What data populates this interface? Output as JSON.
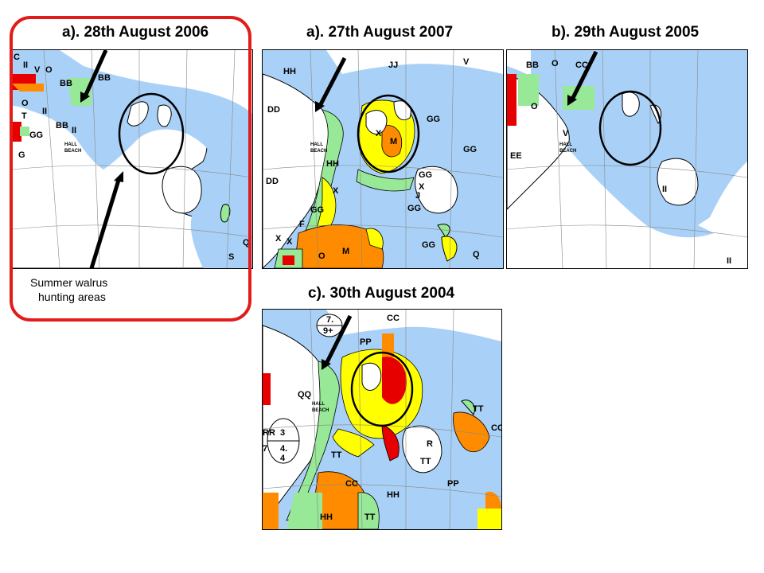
{
  "panels": [
    {
      "id": "2006",
      "title": "a). 28th August 2006",
      "codes": [
        "C",
        "II",
        "V",
        "O",
        "BB",
        "O",
        "T",
        "II",
        "GG",
        "BB",
        "G",
        "II",
        "BB",
        "Q",
        "S"
      ],
      "place": [
        "HALL",
        "BEACH"
      ]
    },
    {
      "id": "2007",
      "title": "a). 27th August 2007",
      "codes": [
        "HH",
        "JJ",
        "V",
        "DD",
        "GG",
        "X",
        "M",
        "GG",
        "HH",
        "GG",
        "X",
        "J",
        "X",
        "GG",
        "DD",
        "GG",
        "F",
        "X",
        "X",
        "O",
        "M",
        "GG",
        "Q"
      ],
      "place": [
        "HALL",
        "BEACH"
      ]
    },
    {
      "id": "2005",
      "title": "b). 29th August 2005",
      "codes": [
        "BB",
        "O",
        "CC",
        "O",
        "V",
        "EE",
        "II",
        "II"
      ],
      "place": [
        "HALL",
        "BEACH"
      ]
    },
    {
      "id": "2004",
      "title": "c). 30th August 2004",
      "codes": [
        "CC",
        "PP",
        "QQ",
        "TT",
        "CC",
        "R",
        "TT",
        "TT",
        "PP",
        "HH",
        "CC",
        "TT",
        "HH"
      ],
      "place": [
        "HALL",
        "BEACH"
      ],
      "legend": {
        "top": [
          "7.",
          "9+"
        ],
        "bottom": [
          "3",
          "4.",
          "4"
        ],
        "side": [
          "RR",
          "7"
        ]
      }
    }
  ],
  "caption": {
    "line1": "Summer walrus",
    "line2": "hunting areas"
  },
  "colors": {
    "water": "#a9d1f7",
    "fastice": "#ffffff",
    "green": "#97e897",
    "yellow": "#ffff00",
    "orange": "#ff8c00",
    "red": "#e60000",
    "highlight": "#e21b1b"
  }
}
